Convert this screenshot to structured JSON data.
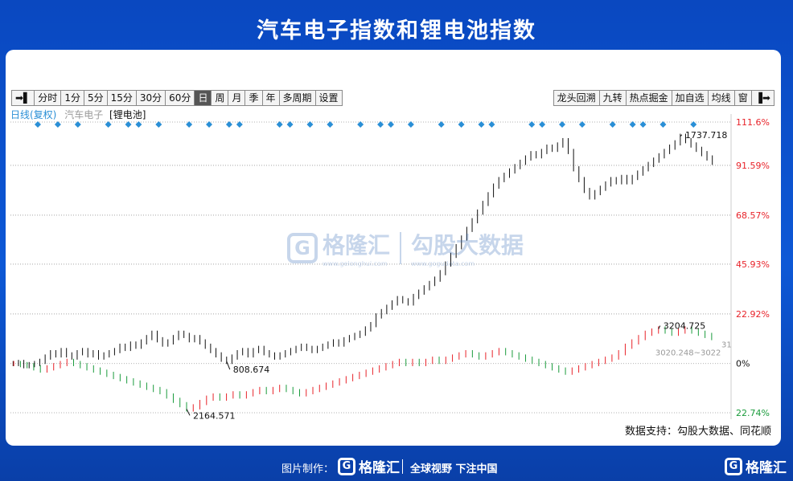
{
  "title": "汽车电子指数和锂电池指数",
  "toolbar_left": [
    "➡▌",
    "分时",
    "1分",
    "5分",
    "15分",
    "30分",
    "60分",
    "日",
    "周",
    "月",
    "季",
    "年",
    "多周期",
    "设置"
  ],
  "toolbar_active": "日",
  "toolbar_right": [
    "龙头回溯",
    "九转",
    "热点掘金",
    "加自选",
    "均线",
    "窗",
    "▐➡"
  ],
  "legend": {
    "mode": "日线(复权)",
    "series1": "汽车电子",
    "series2": "[锂电池]"
  },
  "source": "数据支持：勾股大数据、同花顺",
  "watermark": {
    "brand": "格隆汇",
    "brand_url": "www.gelonghui.com",
    "partner": "勾股大数据",
    "partner_url": "www.gogudata.com"
  },
  "footer": {
    "label": "图片制作：",
    "brand": "格隆汇",
    "slogan": "全球视野 下注中国",
    "corner_brand": "格隆汇"
  },
  "colors": {
    "up": "#e8232a",
    "down": "#1a9b3c",
    "black": "#111111",
    "marker": "#2a8fd6",
    "grid": "#999999"
  },
  "chart_data": {
    "type": "line",
    "y_axis_labels": [
      "111.6%",
      "91.59%",
      "68.57%",
      "45.93%",
      "22.92%",
      "0%",
      "22.74%"
    ],
    "y_axis_values": [
      111.6,
      91.59,
      68.57,
      45.93,
      22.92,
      0,
      -22.74
    ],
    "ylim": [
      -22.74,
      111.6
    ],
    "annotations": {
      "lithium_high": "1737.718",
      "lithium_low": "808.674",
      "auto_high": "3204.725",
      "auto_low": "2164.571",
      "auto_range": "3020.248~3022",
      "auto_edge": "31"
    },
    "series": [
      {
        "name": "锂电池",
        "color": "black",
        "values": [
          0,
          0.5,
          -1,
          -0.5,
          0,
          1,
          3,
          5,
          4,
          6,
          4,
          3,
          5,
          6,
          4,
          5,
          3,
          4,
          5,
          6,
          8,
          7,
          9,
          8,
          10,
          12,
          14,
          11,
          9,
          10,
          12,
          14,
          13,
          11,
          12,
          10,
          8,
          6,
          4,
          2,
          1,
          3,
          5,
          6,
          4,
          6,
          7,
          5,
          4,
          3,
          4,
          5,
          6,
          7,
          8,
          7,
          6,
          7,
          8,
          9,
          10,
          9,
          11,
          12,
          13,
          14,
          16,
          18,
          22,
          24,
          26,
          28,
          30,
          29,
          28,
          31,
          33,
          35,
          37,
          39,
          42,
          46,
          50,
          54,
          58,
          62,
          66,
          70,
          74,
          78,
          82,
          85,
          87,
          89,
          91,
          93,
          95,
          97,
          96,
          98,
          100,
          99,
          101,
          103,
          98,
          90,
          85,
          80,
          77,
          79,
          81,
          83,
          85,
          84,
          86,
          84,
          86,
          88,
          90,
          92,
          94,
          96,
          98,
          100,
          102,
          105,
          103,
          101,
          99,
          97,
          95,
          93
        ]
      },
      {
        "name": "汽车电子",
        "color": "updown",
        "values": [
          0,
          -0.5,
          -1,
          -2,
          -3,
          -2,
          -1,
          0,
          1,
          0,
          -1,
          -2,
          -3,
          -4,
          -5,
          -6,
          -7,
          -8,
          -9,
          -10,
          -11,
          -12,
          -13,
          -15,
          -17,
          -19,
          -21,
          -20,
          -18,
          -16,
          -15,
          -16,
          -15,
          -14,
          -15,
          -14,
          -13,
          -12,
          -13,
          -12,
          -11,
          -12,
          -13,
          -14,
          -13,
          -12,
          -11,
          -10,
          -9,
          -8,
          -7,
          -6,
          -5,
          -4,
          -3,
          -2,
          -1,
          0,
          1,
          0,
          1,
          0,
          1,
          2,
          1,
          2,
          3,
          4,
          5,
          4,
          3,
          4,
          5,
          6,
          5,
          4,
          3,
          2,
          1,
          0,
          -1,
          -2,
          -3,
          -4,
          -3,
          -2,
          -1,
          0,
          1,
          2,
          3,
          5,
          8,
          10,
          12,
          14,
          15,
          16,
          15,
          14,
          15,
          16,
          15,
          14,
          13,
          12
        ]
      }
    ],
    "signal_markers_count": 40,
    "grid": true,
    "legend_position": "top-left"
  }
}
